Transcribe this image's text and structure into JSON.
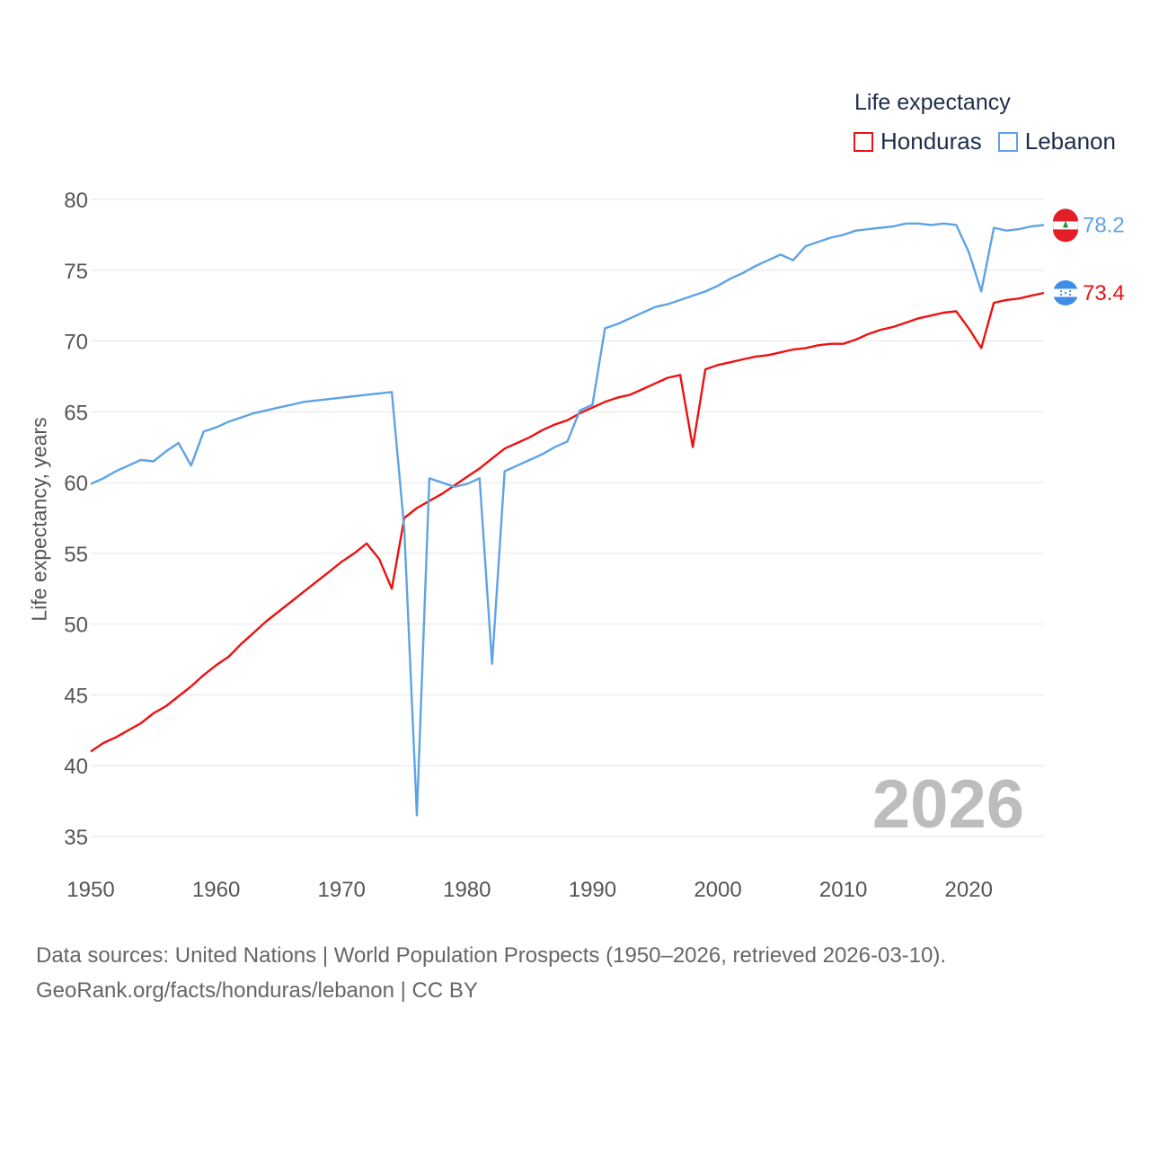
{
  "legend": {
    "title": "Life expectancy",
    "items": [
      {
        "name": "Honduras",
        "color": "#ee1111"
      },
      {
        "name": "Lebanon",
        "color": "#5ea3e6"
      }
    ]
  },
  "chart_data": {
    "type": "line",
    "title": "Life expectancy",
    "xlabel": "",
    "ylabel": "Life expectancy, years",
    "xlim": [
      1950,
      2026
    ],
    "ylim": [
      35,
      80
    ],
    "x_ticks": [
      1950,
      1960,
      1970,
      1980,
      1990,
      2000,
      2010,
      2020
    ],
    "y_ticks": [
      35,
      40,
      45,
      50,
      55,
      60,
      65,
      70,
      75,
      80
    ],
    "year_label": "2026",
    "series": [
      {
        "name": "Honduras",
        "color": "#ee1111",
        "end_label": "73.4",
        "x": [
          1950,
          1951,
          1952,
          1953,
          1954,
          1955,
          1956,
          1957,
          1958,
          1959,
          1960,
          1961,
          1962,
          1963,
          1964,
          1965,
          1966,
          1967,
          1968,
          1969,
          1970,
          1971,
          1972,
          1973,
          1974,
          1975,
          1976,
          1977,
          1978,
          1979,
          1980,
          1981,
          1982,
          1983,
          1984,
          1985,
          1986,
          1987,
          1988,
          1989,
          1990,
          1991,
          1992,
          1993,
          1994,
          1995,
          1996,
          1997,
          1998,
          1999,
          2000,
          2001,
          2002,
          2003,
          2004,
          2005,
          2006,
          2007,
          2008,
          2009,
          2010,
          2011,
          2012,
          2013,
          2014,
          2015,
          2016,
          2017,
          2018,
          2019,
          2020,
          2021,
          2022,
          2023,
          2024,
          2025,
          2026
        ],
        "values": [
          41.0,
          41.6,
          42.0,
          42.5,
          43.0,
          43.7,
          44.2,
          44.9,
          45.6,
          46.4,
          47.1,
          47.7,
          48.6,
          49.4,
          50.2,
          50.9,
          51.6,
          52.3,
          53.0,
          53.7,
          54.4,
          55.0,
          55.7,
          54.6,
          52.5,
          57.5,
          58.2,
          58.7,
          59.2,
          59.8,
          60.4,
          61.0,
          61.7,
          62.4,
          62.8,
          63.2,
          63.7,
          64.1,
          64.4,
          64.9,
          65.3,
          65.7,
          66.0,
          66.2,
          66.6,
          67.0,
          67.4,
          67.6,
          62.5,
          68.0,
          68.3,
          68.5,
          68.7,
          68.9,
          69.0,
          69.2,
          69.4,
          69.5,
          69.7,
          69.8,
          69.8,
          70.1,
          70.5,
          70.8,
          71.0,
          71.3,
          71.6,
          71.8,
          72.0,
          72.1,
          70.9,
          69.5,
          72.7,
          72.9,
          73.0,
          73.2,
          73.4
        ]
      },
      {
        "name": "Lebanon",
        "color": "#5ea3e6",
        "end_label": "78.2",
        "x": [
          1950,
          1951,
          1952,
          1953,
          1954,
          1955,
          1956,
          1957,
          1958,
          1959,
          1960,
          1961,
          1962,
          1963,
          1964,
          1965,
          1966,
          1967,
          1968,
          1969,
          1970,
          1971,
          1972,
          1973,
          1974,
          1975,
          1976,
          1977,
          1978,
          1979,
          1980,
          1981,
          1982,
          1983,
          1984,
          1985,
          1986,
          1987,
          1988,
          1989,
          1990,
          1991,
          1992,
          1993,
          1994,
          1995,
          1996,
          1997,
          1998,
          1999,
          2000,
          2001,
          2002,
          2003,
          2004,
          2005,
          2006,
          2007,
          2008,
          2009,
          2010,
          2011,
          2012,
          2013,
          2014,
          2015,
          2016,
          2017,
          2018,
          2019,
          2020,
          2021,
          2022,
          2023,
          2024,
          2025,
          2026
        ],
        "values": [
          59.9,
          60.3,
          60.8,
          61.2,
          61.6,
          61.5,
          62.2,
          62.8,
          61.2,
          63.6,
          63.9,
          64.3,
          64.6,
          64.9,
          65.1,
          65.3,
          65.5,
          65.7,
          65.8,
          65.9,
          66.0,
          66.1,
          66.2,
          66.3,
          66.4,
          56.7,
          36.5,
          60.3,
          60.0,
          59.7,
          59.9,
          60.3,
          47.2,
          60.8,
          61.2,
          61.6,
          62.0,
          62.5,
          62.9,
          65.1,
          65.5,
          70.9,
          71.2,
          71.6,
          72.0,
          72.4,
          72.6,
          72.9,
          73.2,
          73.5,
          73.9,
          74.4,
          74.8,
          75.3,
          75.7,
          76.1,
          75.7,
          76.7,
          77.0,
          77.3,
          77.5,
          77.8,
          77.9,
          78.0,
          78.1,
          78.3,
          78.3,
          78.2,
          78.3,
          78.2,
          76.3,
          73.5,
          78.0,
          77.8,
          77.9,
          78.1,
          78.2
        ]
      }
    ]
  },
  "footer": {
    "line1": "Data sources: United Nations | World Population Prospects (1950–2026, retrieved 2026-03-10).",
    "line2": "GeoRank.org/facts/honduras/lebanon | CC BY"
  }
}
